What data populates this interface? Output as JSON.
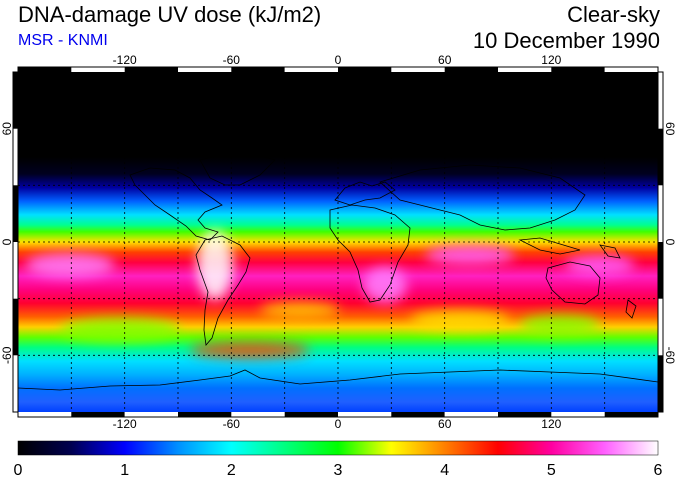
{
  "header": {
    "title": "DNA-damage UV dose (kJ/m2)",
    "subtitle": "MSR - KNMI",
    "condition": "Clear-sky",
    "date": "10 December 1990"
  },
  "colors": {
    "subtitle": "#0000ee",
    "frame": "#000000",
    "grid": "#000000",
    "coast": "#000000"
  },
  "map": {
    "lon_ticks": [
      "-120",
      "-60",
      "0",
      "60",
      "120"
    ],
    "lat_ticks_left": [
      "60",
      "0",
      "-60"
    ],
    "lat_ticks_right": [
      "60",
      "0",
      "-60"
    ]
  },
  "colorbar": {
    "min": 0,
    "max": 6,
    "labels": [
      "0",
      "1",
      "2",
      "3",
      "4",
      "5",
      "6"
    ],
    "stops": [
      {
        "value": 0.0,
        "color": "#000000"
      },
      {
        "value": 0.5,
        "color": "#000050"
      },
      {
        "value": 1.0,
        "color": "#0000ff"
      },
      {
        "value": 1.5,
        "color": "#0090ff"
      },
      {
        "value": 2.0,
        "color": "#00ffff"
      },
      {
        "value": 2.5,
        "color": "#00ff80"
      },
      {
        "value": 3.0,
        "color": "#00ff00"
      },
      {
        "value": 3.5,
        "color": "#ffff00"
      },
      {
        "value": 4.0,
        "color": "#ff8000"
      },
      {
        "value": 4.5,
        "color": "#ff0000"
      },
      {
        "value": 5.0,
        "color": "#ff00a0"
      },
      {
        "value": 5.5,
        "color": "#ff60ff"
      },
      {
        "value": 6.0,
        "color": "#ffffff"
      }
    ]
  }
}
